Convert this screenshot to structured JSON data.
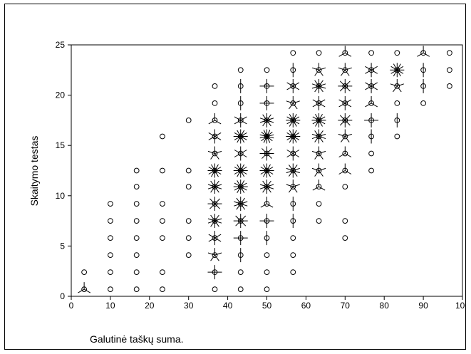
{
  "chart_data": {
    "type": "scatter",
    "variant": "sunflower",
    "title": "",
    "xlabel": "Galutinė taškų suma.",
    "ylabel": "Skaitymo testas",
    "xlim": [
      0,
      100
    ],
    "ylim": [
      0,
      25
    ],
    "x_ticks": [
      "0",
      "10",
      "20",
      "30",
      "40",
      "50",
      "60",
      "70",
      "80",
      "90",
      "100"
    ],
    "y_ticks": [
      "0",
      "5",
      "10",
      "15",
      "20",
      "25"
    ],
    "grid": false,
    "legend": "none",
    "points": [
      {
        "x": 3.3,
        "y": 0.7,
        "n": 3
      },
      {
        "x": 3.3,
        "y": 2.4,
        "n": 1
      },
      {
        "x": 10,
        "y": 0.7,
        "n": 1
      },
      {
        "x": 10,
        "y": 2.4,
        "n": 1
      },
      {
        "x": 10,
        "y": 4.1,
        "n": 1
      },
      {
        "x": 10,
        "y": 5.8,
        "n": 1
      },
      {
        "x": 10,
        "y": 7.5,
        "n": 1
      },
      {
        "x": 10,
        "y": 9.2,
        "n": 1
      },
      {
        "x": 16.7,
        "y": 0.7,
        "n": 1
      },
      {
        "x": 16.7,
        "y": 2.4,
        "n": 1
      },
      {
        "x": 16.7,
        "y": 4.1,
        "n": 1
      },
      {
        "x": 16.7,
        "y": 5.8,
        "n": 1
      },
      {
        "x": 16.7,
        "y": 7.5,
        "n": 1
      },
      {
        "x": 16.7,
        "y": 9.2,
        "n": 1
      },
      {
        "x": 16.7,
        "y": 10.9,
        "n": 1
      },
      {
        "x": 16.7,
        "y": 12.5,
        "n": 1
      },
      {
        "x": 23.3,
        "y": 0.7,
        "n": 1
      },
      {
        "x": 23.3,
        "y": 2.4,
        "n": 1
      },
      {
        "x": 23.3,
        "y": 5.8,
        "n": 1
      },
      {
        "x": 23.3,
        "y": 7.5,
        "n": 1
      },
      {
        "x": 23.3,
        "y": 9.2,
        "n": 1
      },
      {
        "x": 23.3,
        "y": 12.5,
        "n": 1
      },
      {
        "x": 23.3,
        "y": 15.9,
        "n": 1
      },
      {
        "x": 30,
        "y": 4.1,
        "n": 1
      },
      {
        "x": 30,
        "y": 5.8,
        "n": 1
      },
      {
        "x": 30,
        "y": 7.5,
        "n": 1
      },
      {
        "x": 30,
        "y": 10.9,
        "n": 1
      },
      {
        "x": 30,
        "y": 12.5,
        "n": 1
      },
      {
        "x": 30,
        "y": 17.5,
        "n": 1
      },
      {
        "x": 36.7,
        "y": 0.7,
        "n": 1
      },
      {
        "x": 36.7,
        "y": 2.4,
        "n": 4
      },
      {
        "x": 36.7,
        "y": 4.1,
        "n": 5
      },
      {
        "x": 36.7,
        "y": 5.8,
        "n": 6
      },
      {
        "x": 36.7,
        "y": 7.5,
        "n": 10
      },
      {
        "x": 36.7,
        "y": 9.2,
        "n": 8
      },
      {
        "x": 36.7,
        "y": 10.9,
        "n": 10
      },
      {
        "x": 36.7,
        "y": 12.5,
        "n": 12
      },
      {
        "x": 36.7,
        "y": 14.2,
        "n": 5
      },
      {
        "x": 36.7,
        "y": 15.9,
        "n": 6
      },
      {
        "x": 36.7,
        "y": 17.5,
        "n": 3
      },
      {
        "x": 36.7,
        "y": 19.2,
        "n": 1
      },
      {
        "x": 36.7,
        "y": 20.9,
        "n": 1
      },
      {
        "x": 43.3,
        "y": 0.7,
        "n": 1
      },
      {
        "x": 43.3,
        "y": 2.4,
        "n": 1
      },
      {
        "x": 43.3,
        "y": 4.1,
        "n": 2
      },
      {
        "x": 43.3,
        "y": 5.8,
        "n": 4
      },
      {
        "x": 43.3,
        "y": 7.5,
        "n": 8
      },
      {
        "x": 43.3,
        "y": 9.2,
        "n": 10
      },
      {
        "x": 43.3,
        "y": 10.9,
        "n": 12
      },
      {
        "x": 43.3,
        "y": 12.5,
        "n": 12
      },
      {
        "x": 43.3,
        "y": 14.2,
        "n": 6
      },
      {
        "x": 43.3,
        "y": 15.9,
        "n": 12
      },
      {
        "x": 43.3,
        "y": 17.5,
        "n": 6
      },
      {
        "x": 43.3,
        "y": 19.2,
        "n": 2
      },
      {
        "x": 43.3,
        "y": 20.9,
        "n": 2
      },
      {
        "x": 43.3,
        "y": 22.5,
        "n": 1
      },
      {
        "x": 50,
        "y": 0.7,
        "n": 1
      },
      {
        "x": 50,
        "y": 2.4,
        "n": 1
      },
      {
        "x": 50,
        "y": 4.1,
        "n": 1
      },
      {
        "x": 50,
        "y": 5.8,
        "n": 2
      },
      {
        "x": 50,
        "y": 7.5,
        "n": 4
      },
      {
        "x": 50,
        "y": 9.2,
        "n": 3
      },
      {
        "x": 50,
        "y": 10.9,
        "n": 10
      },
      {
        "x": 50,
        "y": 12.5,
        "n": 12
      },
      {
        "x": 50,
        "y": 14.2,
        "n": 8
      },
      {
        "x": 50,
        "y": 15.9,
        "n": 14
      },
      {
        "x": 50,
        "y": 17.5,
        "n": 10
      },
      {
        "x": 50,
        "y": 19.2,
        "n": 4
      },
      {
        "x": 50,
        "y": 20.9,
        "n": 4
      },
      {
        "x": 50,
        "y": 22.5,
        "n": 1
      },
      {
        "x": 56.7,
        "y": 2.4,
        "n": 1
      },
      {
        "x": 56.7,
        "y": 4.1,
        "n": 1
      },
      {
        "x": 56.7,
        "y": 5.8,
        "n": 1
      },
      {
        "x": 56.7,
        "y": 7.5,
        "n": 2
      },
      {
        "x": 56.7,
        "y": 9.2,
        "n": 2
      },
      {
        "x": 56.7,
        "y": 10.9,
        "n": 5
      },
      {
        "x": 56.7,
        "y": 12.5,
        "n": 10
      },
      {
        "x": 56.7,
        "y": 14.2,
        "n": 6
      },
      {
        "x": 56.7,
        "y": 15.9,
        "n": 12
      },
      {
        "x": 56.7,
        "y": 17.5,
        "n": 12
      },
      {
        "x": 56.7,
        "y": 19.2,
        "n": 5
      },
      {
        "x": 56.7,
        "y": 20.9,
        "n": 6
      },
      {
        "x": 56.7,
        "y": 22.5,
        "n": 2
      },
      {
        "x": 56.7,
        "y": 24.2,
        "n": 1
      },
      {
        "x": 63.3,
        "y": 7.5,
        "n": 1
      },
      {
        "x": 63.3,
        "y": 9.2,
        "n": 1
      },
      {
        "x": 63.3,
        "y": 10.9,
        "n": 3
      },
      {
        "x": 63.3,
        "y": 12.5,
        "n": 5
      },
      {
        "x": 63.3,
        "y": 14.2,
        "n": 5
      },
      {
        "x": 63.3,
        "y": 15.9,
        "n": 10
      },
      {
        "x": 63.3,
        "y": 17.5,
        "n": 12
      },
      {
        "x": 63.3,
        "y": 19.2,
        "n": 6
      },
      {
        "x": 63.3,
        "y": 20.9,
        "n": 10
      },
      {
        "x": 63.3,
        "y": 22.5,
        "n": 5
      },
      {
        "x": 63.3,
        "y": 24.2,
        "n": 1
      },
      {
        "x": 70,
        "y": 5.8,
        "n": 1
      },
      {
        "x": 70,
        "y": 7.5,
        "n": 1
      },
      {
        "x": 70,
        "y": 10.9,
        "n": 1
      },
      {
        "x": 70,
        "y": 12.5,
        "n": 3
      },
      {
        "x": 70,
        "y": 14.2,
        "n": 3
      },
      {
        "x": 70,
        "y": 15.9,
        "n": 5
      },
      {
        "x": 70,
        "y": 17.5,
        "n": 8
      },
      {
        "x": 70,
        "y": 19.2,
        "n": 6
      },
      {
        "x": 70,
        "y": 20.9,
        "n": 8
      },
      {
        "x": 70,
        "y": 22.5,
        "n": 5
      },
      {
        "x": 70,
        "y": 24.2,
        "n": 3
      },
      {
        "x": 76.7,
        "y": 12.5,
        "n": 1
      },
      {
        "x": 76.7,
        "y": 14.2,
        "n": 1
      },
      {
        "x": 76.7,
        "y": 15.9,
        "n": 2
      },
      {
        "x": 76.7,
        "y": 17.5,
        "n": 4
      },
      {
        "x": 76.7,
        "y": 19.2,
        "n": 3
      },
      {
        "x": 76.7,
        "y": 20.9,
        "n": 6
      },
      {
        "x": 76.7,
        "y": 22.5,
        "n": 6
      },
      {
        "x": 76.7,
        "y": 24.2,
        "n": 1
      },
      {
        "x": 83.3,
        "y": 15.9,
        "n": 1
      },
      {
        "x": 83.3,
        "y": 17.5,
        "n": 2
      },
      {
        "x": 83.3,
        "y": 19.2,
        "n": 1
      },
      {
        "x": 83.3,
        "y": 20.9,
        "n": 5
      },
      {
        "x": 83.3,
        "y": 22.5,
        "n": 12
      },
      {
        "x": 83.3,
        "y": 24.2,
        "n": 1
      },
      {
        "x": 90,
        "y": 19.2,
        "n": 1
      },
      {
        "x": 90,
        "y": 20.9,
        "n": 2
      },
      {
        "x": 90,
        "y": 22.5,
        "n": 2
      },
      {
        "x": 90,
        "y": 24.2,
        "n": 3
      },
      {
        "x": 96.7,
        "y": 20.9,
        "n": 1
      },
      {
        "x": 96.7,
        "y": 22.5,
        "n": 1
      },
      {
        "x": 96.7,
        "y": 24.2,
        "n": 1
      }
    ]
  }
}
